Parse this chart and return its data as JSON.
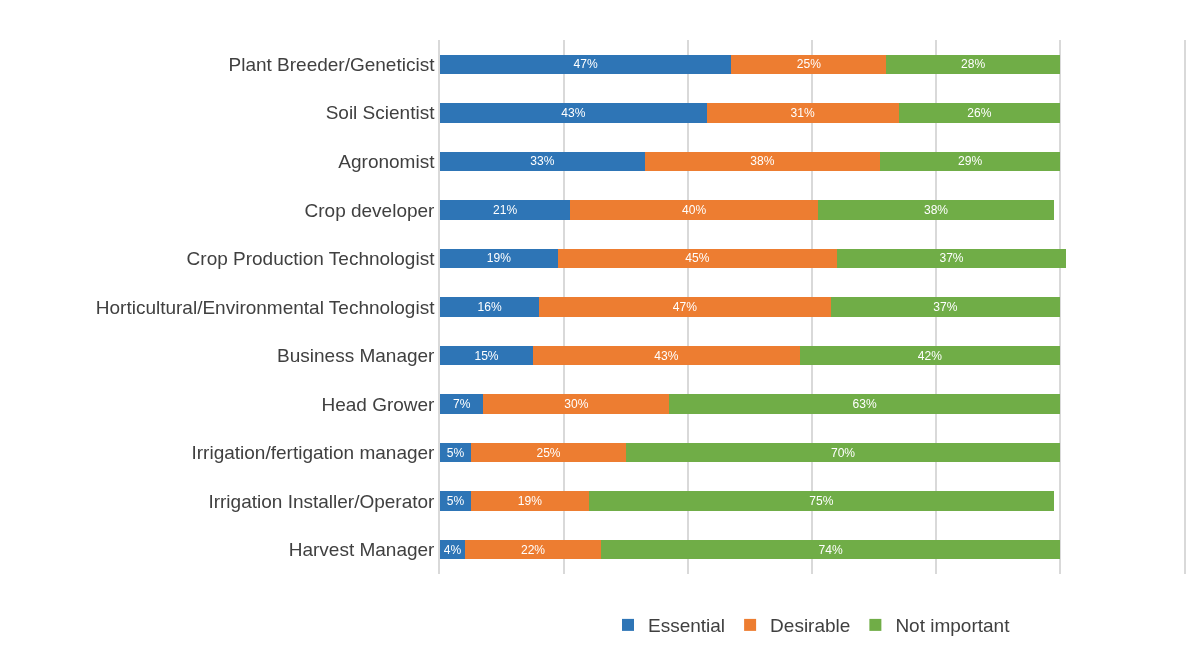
{
  "chart_data": {
    "type": "bar",
    "orientation": "horizontal",
    "stacked": true,
    "categories": [
      "Plant Breeder/Geneticist",
      "Soil Scientist",
      "Agronomist",
      "Crop developer",
      "Crop Production Technologist",
      "Horticultural/Environmental Technologist",
      "Business Manager",
      "Head Grower",
      "Irrigation/fertigation manager",
      "Irrigation Installer/Operator",
      "Harvest Manager"
    ],
    "series": [
      {
        "name": "Essential",
        "color": "#2e75b6",
        "values": [
          47,
          43,
          33,
          21,
          19,
          16,
          15,
          7,
          5,
          5,
          4
        ],
        "value_labels": [
          "47%",
          "43%",
          "33%",
          "21%",
          "19%",
          "16%",
          "15%",
          "7%",
          "5%",
          "5%",
          "4%"
        ]
      },
      {
        "name": "Desirable",
        "color": "#ed7d31",
        "values": [
          25,
          31,
          38,
          40,
          45,
          47,
          43,
          30,
          25,
          19,
          22
        ],
        "value_labels": [
          "25%",
          "31%",
          "38%",
          "40%",
          "45%",
          "47%",
          "43%",
          "30%",
          "25%",
          "19%",
          "22%"
        ]
      },
      {
        "name": "Not important",
        "color": "#70ad47",
        "values": [
          28,
          26,
          29,
          38,
          37,
          37,
          42,
          63,
          70,
          75,
          74
        ],
        "value_labels": [
          "28%",
          "26%",
          "29%",
          "38%",
          "37%",
          "37%",
          "42%",
          "63%",
          "70%",
          "75%",
          "74%"
        ]
      }
    ],
    "xlim": [
      0,
      120
    ],
    "xticks": [
      {
        "value": 0,
        "label": null
      },
      {
        "value": 20,
        "label": null
      },
      {
        "value": 40,
        "label": null
      },
      {
        "value": 60,
        "label": null
      },
      {
        "value": 80,
        "label": null
      },
      {
        "value": 100,
        "label": null
      },
      {
        "value": 120,
        "label": null
      }
    ],
    "grid": "x",
    "legend": "bottom",
    "tick_labels": "y"
  }
}
